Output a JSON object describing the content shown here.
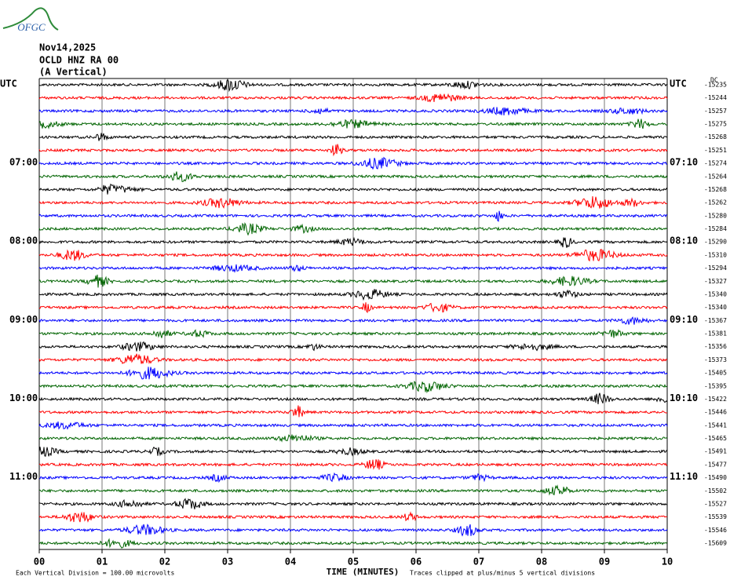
{
  "logo": "OFGC",
  "header": {
    "date": "Nov14,2025",
    "station": "OCLD HNZ RA 00",
    "component": "(A Vertical)"
  },
  "plot": {
    "trace_colors": [
      "#000000",
      "#ff0000",
      "#0000ff",
      "#006400"
    ],
    "left_labels": [
      "UTC",
      null,
      null,
      null,
      null,
      null,
      "07:00",
      null,
      null,
      null,
      null,
      null,
      "08:00",
      null,
      null,
      null,
      null,
      null,
      "09:00",
      null,
      null,
      null,
      null,
      null,
      "10:00",
      null,
      null,
      null,
      null,
      null,
      "11:00",
      null,
      null,
      null,
      null,
      null
    ],
    "right_labels": [
      "UTC",
      null,
      null,
      null,
      null,
      null,
      "07:10",
      null,
      null,
      null,
      null,
      null,
      "08:10",
      null,
      null,
      null,
      null,
      null,
      "09:10",
      null,
      null,
      null,
      null,
      null,
      "10:10",
      null,
      null,
      null,
      null,
      null,
      "11:10",
      null,
      null,
      null,
      null,
      null
    ],
    "dc_label": "DC",
    "offsets": [
      -15235,
      -15244,
      -15257,
      -15275,
      -15268,
      -15251,
      -15274,
      -15264,
      -15268,
      -15262,
      -15280,
      -15284,
      -15290,
      -15310,
      -15294,
      -15327,
      -15340,
      -15340,
      -15367,
      -15381,
      -15356,
      -15373,
      -15405,
      -15395,
      -15422,
      -15446,
      -15441,
      -15465,
      -15491,
      -15477,
      -15490,
      -15502,
      -15527,
      -15539,
      -15546,
      -15609
    ],
    "x_ticks": [
      "00",
      "01",
      "02",
      "03",
      "04",
      "05",
      "06",
      "07",
      "08",
      "09",
      "10"
    ],
    "x_label": "TIME (MINUTES)"
  },
  "footer": {
    "scale": "Each Vertical Division =  100.00 microvolts",
    "clip": "Traces clipped at plus/minus 5 vertical divisions"
  }
}
